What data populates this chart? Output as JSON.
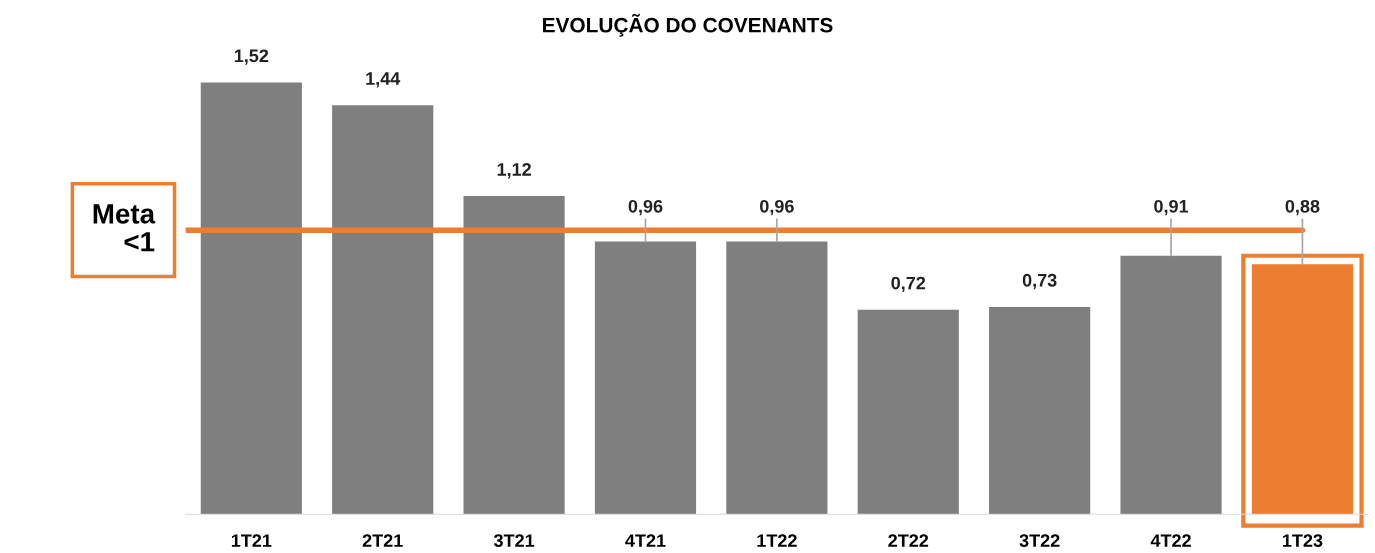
{
  "chart_data": {
    "type": "bar",
    "title": "EVOLUÇÃO DO COVENANTS",
    "categories": [
      "1T21",
      "2T21",
      "3T21",
      "4T21",
      "1T22",
      "2T22",
      "3T22",
      "4T22",
      "1T23"
    ],
    "values": [
      1.52,
      1.44,
      1.12,
      0.96,
      0.96,
      0.72,
      0.73,
      0.91,
      0.88
    ],
    "colors": [
      "#7f7f7f",
      "#7f7f7f",
      "#7f7f7f",
      "#7f7f7f",
      "#7f7f7f",
      "#7f7f7f",
      "#7f7f7f",
      "#7f7f7f",
      "#ed7d31"
    ],
    "value_labels": [
      "1,52",
      "1,44",
      "1,12",
      "0,96",
      "0,96",
      "0,72",
      "0,73",
      "0,91",
      "0,88"
    ],
    "ref_lines": [
      {
        "axis": "y",
        "value": 1,
        "label": "Meta\n<1",
        "color": "#ed7d31",
        "line_style": "solid"
      }
    ],
    "tick_labels": "x",
    "grid": false
  }
}
